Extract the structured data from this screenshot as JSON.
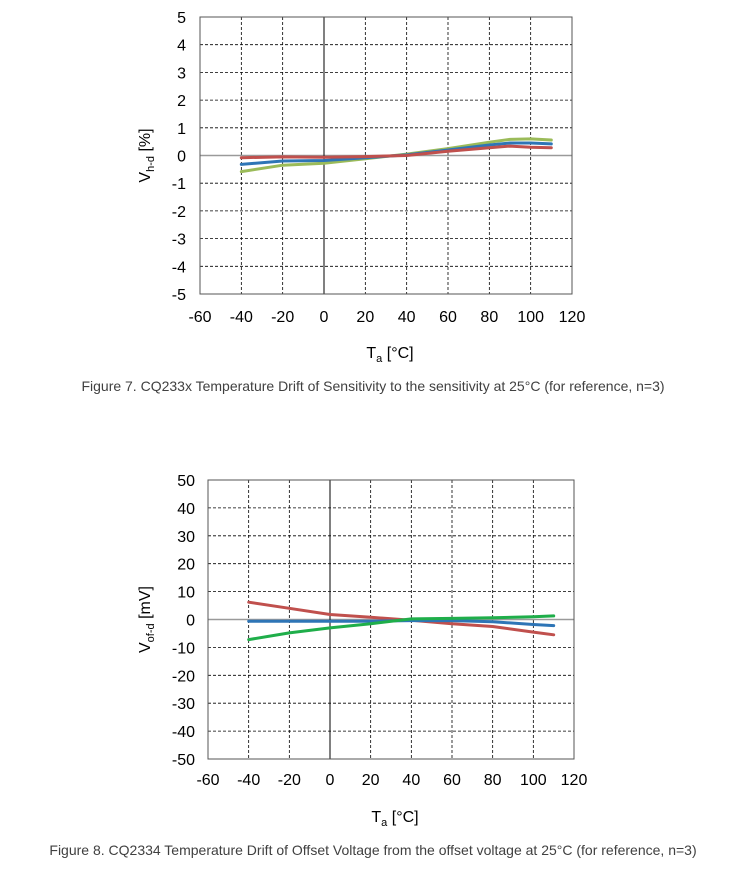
{
  "colors": {
    "blue": "#2e75b6",
    "red": "#c0504d",
    "green": "#9bbb59",
    "green2": "#1fae4a"
  },
  "charts": [
    {
      "caption": "Figure 7. CQ233x Temperature Drift of Sensitivity to the sensitivity at 25°C (for reference, n=3)",
      "xlabel_main": "T",
      "xlabel_sub": "a",
      "xlabel_unit": " [°C]",
      "ylabel_main": "V",
      "ylabel_sub": "h-d",
      "ylabel_unit": " [%]"
    },
    {
      "caption": "Figure 8. CQ2334 Temperature Drift of Offset Voltage from the offset voltage at 25°C (for reference, n=3)",
      "xlabel_main": "T",
      "xlabel_sub": "a",
      "xlabel_unit": " [°C]",
      "ylabel_main": "V",
      "ylabel_sub": "of-d",
      "ylabel_unit": " [mV]"
    }
  ],
  "chart_data": [
    {
      "type": "line",
      "xlim": [
        -60,
        120
      ],
      "ylim": [
        -5,
        5
      ],
      "xticks": [
        -60,
        -40,
        -20,
        0,
        20,
        40,
        60,
        80,
        100,
        120
      ],
      "yticks": [
        -5,
        -4,
        -3,
        -2,
        -1,
        0,
        1,
        2,
        3,
        4,
        5
      ],
      "x": [
        -40,
        -20,
        0,
        20,
        40,
        60,
        80,
        90,
        100,
        110
      ],
      "series": [
        {
          "color": "#9bbb59",
          "values": [
            -0.58,
            -0.35,
            -0.28,
            -0.12,
            0.05,
            0.25,
            0.48,
            0.58,
            0.6,
            0.56
          ]
        },
        {
          "color": "#2e75b6",
          "values": [
            -0.32,
            -0.2,
            -0.18,
            -0.08,
            0.02,
            0.2,
            0.38,
            0.45,
            0.45,
            0.42
          ]
        },
        {
          "color": "#c0504d",
          "values": [
            -0.08,
            -0.05,
            -0.06,
            -0.04,
            0.0,
            0.15,
            0.28,
            0.34,
            0.3,
            0.28
          ]
        }
      ],
      "grid": true
    },
    {
      "type": "line",
      "xlim": [
        -60,
        120
      ],
      "ylim": [
        -50,
        50
      ],
      "xticks": [
        -60,
        -40,
        -20,
        0,
        20,
        40,
        60,
        80,
        100,
        120
      ],
      "yticks": [
        -50,
        -40,
        -30,
        -20,
        -10,
        0,
        10,
        20,
        30,
        40,
        50
      ],
      "x": [
        -40,
        -20,
        0,
        20,
        40,
        60,
        80,
        100,
        110
      ],
      "series": [
        {
          "color": "#c0504d",
          "values": [
            6.2,
            4,
            1.8,
            0.8,
            -0.3,
            -1.5,
            -2.5,
            -4.5,
            -5.5
          ]
        },
        {
          "color": "#2e75b6",
          "values": [
            -0.6,
            -0.6,
            -0.6,
            -0.6,
            -0.4,
            -0.4,
            -0.8,
            -1.8,
            -2.2
          ]
        },
        {
          "color": "#1fae4a",
          "values": [
            -7.2,
            -4.8,
            -3,
            -1.5,
            0.2,
            0.4,
            0.6,
            1.0,
            1.3
          ]
        }
      ],
      "grid": true
    }
  ]
}
